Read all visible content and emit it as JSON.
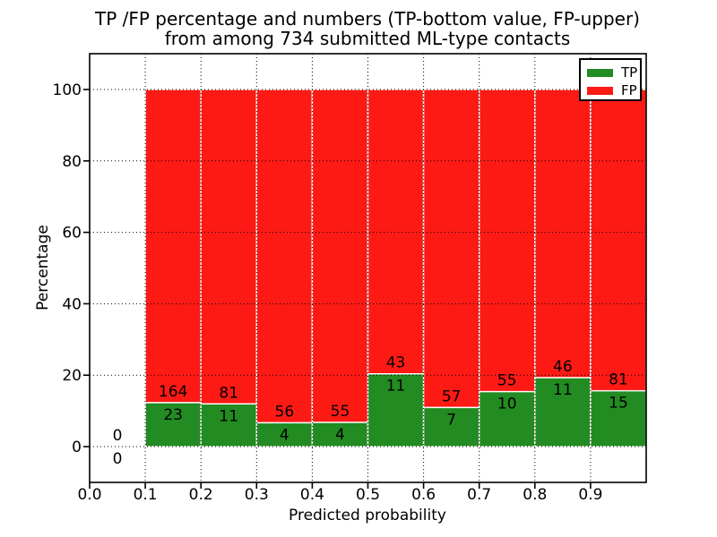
{
  "title": {
    "line1": "TP /FP percentage and numbers (TP-bottom value, FP-upper)",
    "line2": "from among 734 submitted ML-type contacts"
  },
  "chart_data": {
    "type": "bar",
    "stacked": true,
    "normalized": "percent",
    "title": "TP /FP percentage and numbers (TP-bottom value, FP-upper)\nfrom among 734 submitted ML-type contacts",
    "xlabel": "Predicted probability",
    "ylabel": "Percentage",
    "total_contacts": 734,
    "bin_edges": [
      0.0,
      0.1,
      0.2,
      0.3,
      0.4,
      0.5,
      0.6,
      0.7,
      0.8,
      0.9,
      1.0
    ],
    "series": [
      {
        "name": "TP",
        "color": "#228b22",
        "counts": [
          0,
          23,
          11,
          4,
          4,
          11,
          7,
          10,
          11,
          15
        ]
      },
      {
        "name": "FP",
        "color": "#fd1a15",
        "counts": [
          0,
          164,
          81,
          56,
          55,
          43,
          57,
          55,
          46,
          81
        ]
      }
    ],
    "xlim": [
      0.0,
      1.0
    ],
    "ylim": [
      -10,
      110
    ],
    "xticks": {
      "values": [
        0.0,
        0.1,
        0.2,
        0.3,
        0.4,
        0.5,
        0.6,
        0.7,
        0.8,
        0.9
      ],
      "labels": [
        "0.0",
        "0.1",
        "0.2",
        "0.3",
        "0.4",
        "0.5",
        "0.6",
        "0.7",
        "0.8",
        "0.9"
      ]
    },
    "yticks": {
      "values": [
        0,
        20,
        40,
        60,
        80,
        100
      ],
      "labels": [
        "0",
        "20",
        "40",
        "60",
        "80",
        "100"
      ]
    },
    "grid": true,
    "legend": {
      "position": "upper right",
      "entries": [
        {
          "label": "TP",
          "color": "#228b22"
        },
        {
          "label": "FP",
          "color": "#fd1a15"
        }
      ]
    }
  }
}
